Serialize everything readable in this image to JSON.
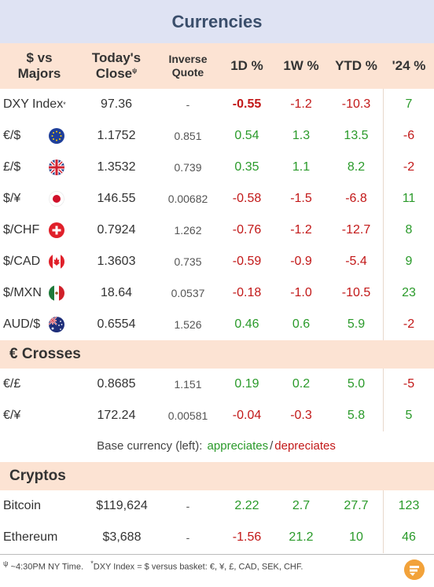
{
  "title": "Currencies",
  "headers": {
    "pair": [
      "$ vs",
      "Majors"
    ],
    "close": [
      "Today's",
      "Close"
    ],
    "close_sup": "ψ",
    "inverse": [
      "Inverse",
      "Quote"
    ],
    "d1": "1D %",
    "w1": "1W %",
    "ytd": "YTD %",
    "y24": "'24 %"
  },
  "majors": [
    {
      "name": "DXY Index",
      "sup": "*",
      "flag": "none",
      "close": "97.36",
      "inverse": "-",
      "d1": "-0.55",
      "w1": "-1.2",
      "ytd": "-10.3",
      "y24": "7"
    },
    {
      "name": "€/$",
      "sup": "",
      "flag": "eu",
      "close": "1.1752",
      "inverse": "0.851",
      "d1": "0.54",
      "w1": "1.3",
      "ytd": "13.5",
      "y24": "-6"
    },
    {
      "name": "£/$",
      "sup": "",
      "flag": "gb",
      "close": "1.3532",
      "inverse": "0.739",
      "d1": "0.35",
      "w1": "1.1",
      "ytd": "8.2",
      "y24": "-2"
    },
    {
      "name": "$/¥",
      "sup": "",
      "flag": "jp",
      "close": "146.55",
      "inverse": "0.00682",
      "d1": "-0.58",
      "w1": "-1.5",
      "ytd": "-6.8",
      "y24": "11"
    },
    {
      "name": "$/CHF",
      "sup": "",
      "flag": "ch",
      "close": "0.7924",
      "inverse": "1.262",
      "d1": "-0.76",
      "w1": "-1.2",
      "ytd": "-12.7",
      "y24": "8"
    },
    {
      "name": "$/CAD",
      "sup": "",
      "flag": "ca",
      "close": "1.3603",
      "inverse": "0.735",
      "d1": "-0.59",
      "w1": "-0.9",
      "ytd": "-5.4",
      "y24": "9"
    },
    {
      "name": "$/MXN",
      "sup": "",
      "flag": "mx",
      "close": "18.64",
      "inverse": "0.0537",
      "d1": "-0.18",
      "w1": "-1.0",
      "ytd": "-10.5",
      "y24": "23"
    },
    {
      "name": "AUD/$",
      "sup": "",
      "flag": "au",
      "close": "0.6554",
      "inverse": "1.526",
      "d1": "0.46",
      "w1": "0.6",
      "ytd": "5.9",
      "y24": "-2"
    }
  ],
  "crosses_title": "€ Crosses",
  "crosses": [
    {
      "name": "€/£",
      "close": "0.8685",
      "inverse": "1.151",
      "d1": "0.19",
      "w1": "0.2",
      "ytd": "5.0",
      "y24": "-5"
    },
    {
      "name": "€/¥",
      "close": "172.24",
      "inverse": "0.00581",
      "d1": "-0.04",
      "w1": "-0.3",
      "ytd": "5.8",
      "y24": "5"
    }
  ],
  "legend": {
    "prefix": "Base currency (left):",
    "appreciates": "appreciates",
    "sep": "/",
    "depreciates": "depreciates"
  },
  "cryptos_title": "Cryptos",
  "cryptos": [
    {
      "name": "Bitcoin",
      "close": "$119,624",
      "inverse": "-",
      "d1": "2.22",
      "w1": "2.7",
      "ytd": "27.7",
      "y24": "123"
    },
    {
      "name": "Ethereum",
      "close": "$3,688",
      "inverse": "-",
      "d1": "-1.56",
      "w1": "21.2",
      "ytd": "10",
      "y24": "46"
    }
  ],
  "footer": {
    "sym1": "ψ",
    "text1": " ~4:30PM NY Time.",
    "sym2": "*",
    "text2": "DXY Index = $ versus basket: €, ¥, £, CAD, SEK, CHF."
  },
  "colors": {
    "title_bg": "#dfe3f3",
    "header_bg": "#fce3d3",
    "positive": "#2a9a2a",
    "negative": "#c21818",
    "logo": "#f2a23a"
  },
  "chart_data": {
    "type": "table",
    "title": "Currencies",
    "columns": [
      "$ vs Majors",
      "Today's Close",
      "Inverse Quote",
      "1D %",
      "1W %",
      "YTD %",
      "'24 %"
    ],
    "sections": [
      {
        "name": "$ vs Majors",
        "rows": [
          [
            "DXY Index",
            "97.36",
            "-",
            "-0.55",
            "-1.2",
            "-10.3",
            "7"
          ],
          [
            "€/$",
            "1.1752",
            "0.851",
            "0.54",
            "1.3",
            "13.5",
            "-6"
          ],
          [
            "£/$",
            "1.3532",
            "0.739",
            "0.35",
            "1.1",
            "8.2",
            "-2"
          ],
          [
            "$/¥",
            "146.55",
            "0.00682",
            "-0.58",
            "-1.5",
            "-6.8",
            "11"
          ],
          [
            "$/CHF",
            "0.7924",
            "1.262",
            "-0.76",
            "-1.2",
            "-12.7",
            "8"
          ],
          [
            "$/CAD",
            "1.3603",
            "0.735",
            "-0.59",
            "-0.9",
            "-5.4",
            "9"
          ],
          [
            "$/MXN",
            "18.64",
            "0.0537",
            "-0.18",
            "-1.0",
            "-10.5",
            "23"
          ],
          [
            "AUD/$",
            "0.6554",
            "1.526",
            "0.46",
            "0.6",
            "5.9",
            "-2"
          ]
        ]
      },
      {
        "name": "€ Crosses",
        "rows": [
          [
            "€/£",
            "0.8685",
            "1.151",
            "0.19",
            "0.2",
            "5.0",
            "-5"
          ],
          [
            "€/¥",
            "172.24",
            "0.00581",
            "-0.04",
            "-0.3",
            "5.8",
            "5"
          ]
        ]
      },
      {
        "name": "Cryptos",
        "rows": [
          [
            "Bitcoin",
            "$119,624",
            "-",
            "2.22",
            "2.7",
            "27.7",
            "123"
          ],
          [
            "Ethereum",
            "$3,688",
            "-",
            "-1.56",
            "21.2",
            "10",
            "46"
          ]
        ]
      }
    ]
  }
}
